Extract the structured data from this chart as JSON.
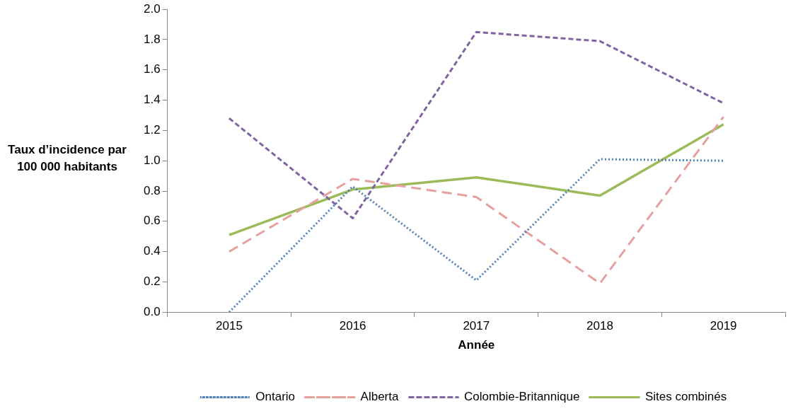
{
  "chart_data": {
    "type": "line",
    "xlabel": "Année",
    "ylabel": "Taux d’incidence par 100 000 habitants",
    "categories": [
      "2015",
      "2016",
      "2017",
      "2018",
      "2019"
    ],
    "series": [
      {
        "name": "Ontario",
        "color": "#4f81bd",
        "line_style": "dotted",
        "values": [
          0.0,
          0.83,
          0.21,
          1.01,
          1.0
        ]
      },
      {
        "name": "Alberta",
        "color": "#e6a0a0",
        "line_style": "dashed",
        "values": [
          0.4,
          0.88,
          0.76,
          0.19,
          1.29
        ]
      },
      {
        "name": "Colombie-Britannique",
        "color": "#8064a2",
        "line_style": "dashed",
        "values": [
          1.28,
          0.62,
          1.85,
          1.79,
          1.38
        ]
      },
      {
        "name": "Sites combinés",
        "color": "#9bbb59",
        "line_style": "solid",
        "values": [
          0.51,
          0.81,
          0.89,
          0.77,
          1.24
        ]
      }
    ],
    "ylim": [
      0,
      2.0
    ],
    "yticks": [
      {
        "value": 0,
        "label": "0.0"
      },
      {
        "value": 0.2,
        "label": "0.2"
      },
      {
        "value": 0.4,
        "label": "0.4"
      },
      {
        "value": 0.6,
        "label": "0.6"
      },
      {
        "value": 0.8,
        "label": "0.8"
      },
      {
        "value": 1.0,
        "label": "1.0"
      },
      {
        "value": 1.2,
        "label": "1.2"
      },
      {
        "value": 1.4,
        "label": "1.4"
      },
      {
        "value": 1.6,
        "label": "1.6"
      },
      {
        "value": 1.8,
        "label": "1.8"
      },
      {
        "value": 2.0,
        "label": "2.0"
      }
    ],
    "grid": false,
    "legend": "bottom",
    "marker": "none"
  }
}
